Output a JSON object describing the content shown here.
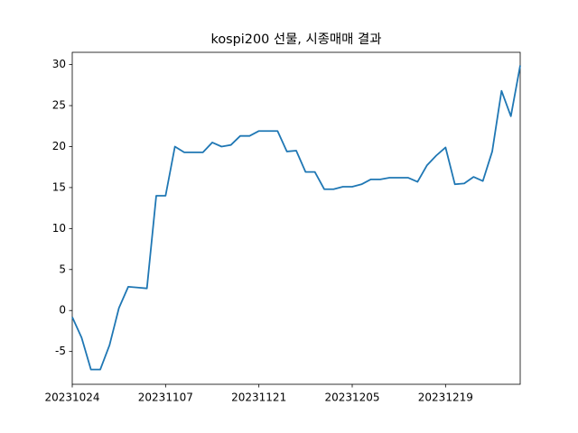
{
  "chart_data": {
    "type": "line",
    "title": "kospi200 선물, 시종매매 결과",
    "categories": [
      "20231024",
      null,
      null,
      null,
      null,
      null,
      null,
      null,
      null,
      null,
      "20231107",
      null,
      null,
      null,
      null,
      null,
      null,
      null,
      null,
      null,
      "20231121",
      null,
      null,
      null,
      null,
      null,
      null,
      null,
      null,
      null,
      "20231205",
      null,
      null,
      null,
      null,
      null,
      null,
      null,
      null,
      null,
      "20231219",
      null,
      null,
      null,
      null,
      null,
      null,
      null,
      null
    ],
    "values": [
      -0.8,
      -3.3,
      -7.2,
      -7.2,
      -4.2,
      0.3,
      2.9,
      2.8,
      2.7,
      14.0,
      14.0,
      20.0,
      19.3,
      19.3,
      19.3,
      20.5,
      20.0,
      20.2,
      21.3,
      21.3,
      21.9,
      21.9,
      21.9,
      19.4,
      19.5,
      16.9,
      16.9,
      14.8,
      14.8,
      15.1,
      15.1,
      15.4,
      16.0,
      16.0,
      16.2,
      16.2,
      16.2,
      15.7,
      17.7,
      18.9,
      19.9,
      15.4,
      15.5,
      16.3,
      15.8,
      19.4,
      26.8,
      23.7,
      29.9
    ],
    "color": "#1f77b4",
    "ylim": [
      -9.0,
      31.5
    ],
    "yticks": [
      -5,
      0,
      5,
      10,
      15,
      20,
      25,
      30
    ]
  }
}
